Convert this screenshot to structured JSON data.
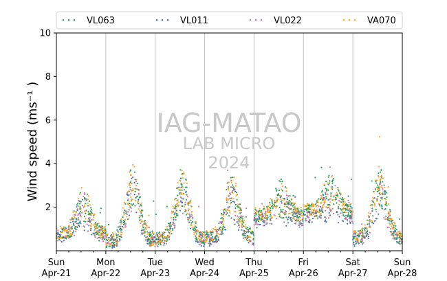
{
  "chart_data": {
    "type": "scatter",
    "title": "",
    "xlabel": "",
    "ylabel": "Wind speed (ms⁻¹ )",
    "ylim": [
      0,
      10
    ],
    "yticks": [
      2,
      4,
      6,
      8,
      10
    ],
    "xlim": [
      "2024-04-21",
      "2024-04-28"
    ],
    "xticks": [
      {
        "day": "Sun",
        "date": "Apr-21"
      },
      {
        "day": "Mon",
        "date": "Apr-22"
      },
      {
        "day": "Tue",
        "date": "Apr-23"
      },
      {
        "day": "Wed",
        "date": "Apr-24"
      },
      {
        "day": "Thu",
        "date": "Apr-25"
      },
      {
        "day": "Fri",
        "date": "Apr-26"
      },
      {
        "day": "Sat",
        "date": "Apr-27"
      },
      {
        "day": "Sun",
        "date": "Apr-28"
      }
    ],
    "grid": "vertical",
    "legend_position": "top",
    "watermark": {
      "line1": "IAG-MATAO",
      "line2": "LAB MICRO",
      "line3": "2024"
    },
    "series": [
      {
        "name": "VL063",
        "color": "#2e9e5b"
      },
      {
        "name": "VL011",
        "color": "#4b6fa6"
      },
      {
        "name": "VL022",
        "color": "#c77aa6"
      },
      {
        "name": "VA070",
        "color": "#ffa726"
      }
    ],
    "daily_profile": [
      {
        "day": "Apr-21",
        "night": 0.8,
        "peak": 2.1
      },
      {
        "day": "Apr-22",
        "night": 0.45,
        "peak": 3.0
      },
      {
        "day": "Apr-23",
        "night": 0.55,
        "peak": 2.8
      },
      {
        "day": "Apr-24",
        "night": 0.6,
        "peak": 2.6
      },
      {
        "day": "Apr-25",
        "night": 1.6,
        "peak": 2.4
      },
      {
        "day": "Apr-26",
        "night": 1.8,
        "peak": 2.6
      },
      {
        "day": "Apr-27",
        "night": 0.6,
        "peak": 2.9
      }
    ]
  }
}
